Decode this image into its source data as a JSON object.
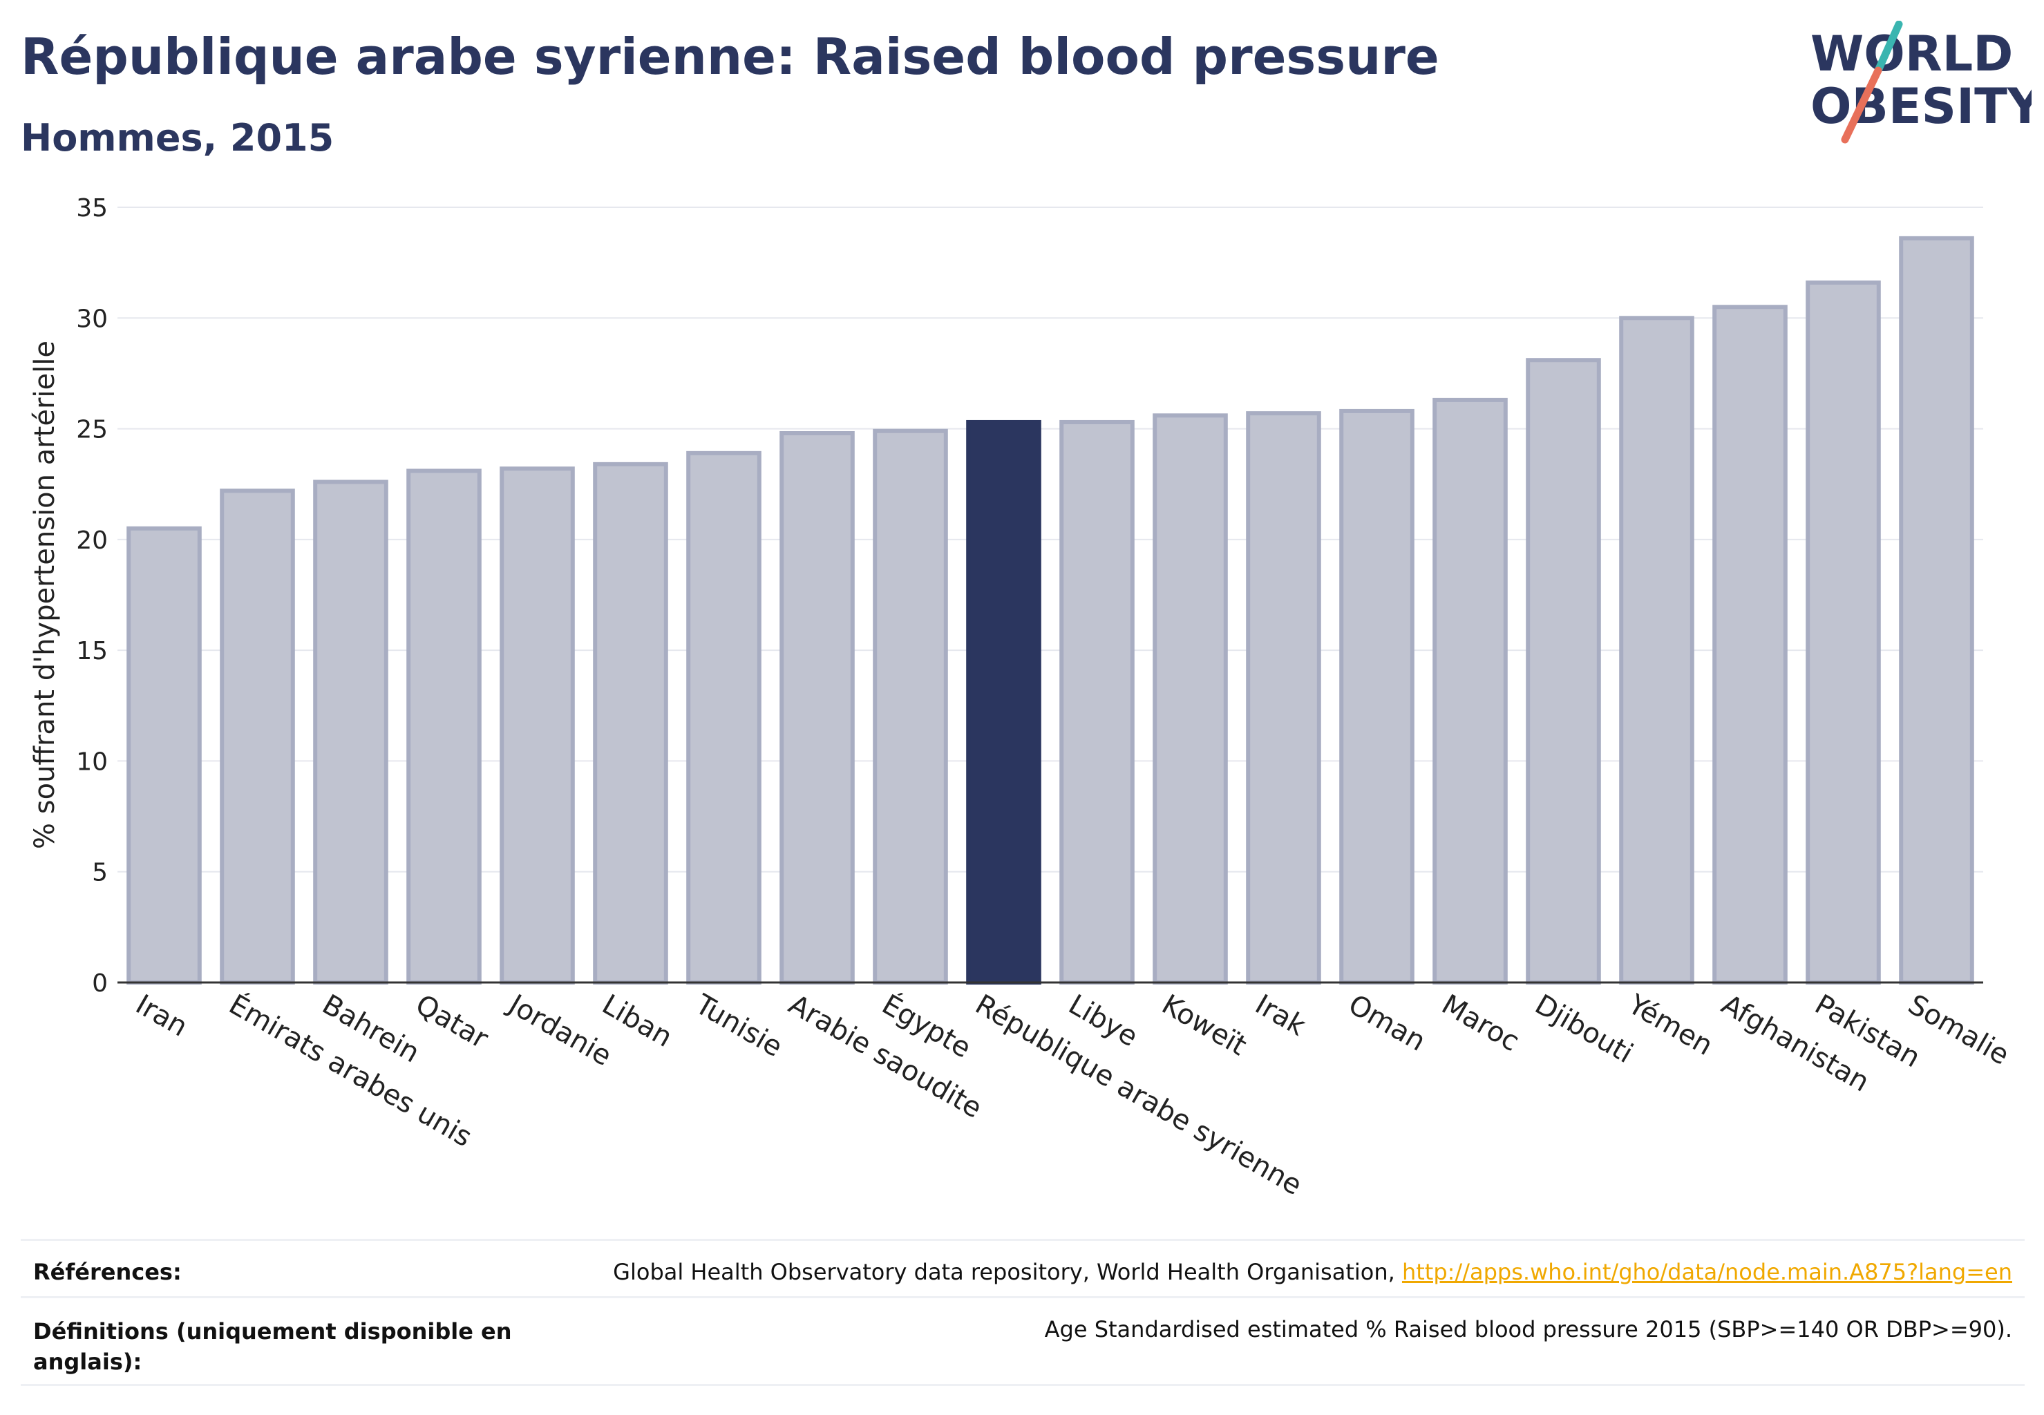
{
  "title": "République arabe syrienne: Raised blood pressure",
  "subtitle": "Hommes, 2015",
  "logo": {
    "line1": "WORLD",
    "line2": "OBESITY"
  },
  "colors": {
    "bar": "#c0c3d0",
    "bar_border": "#a8adc2",
    "highlight": "#2b365f",
    "title": "#2b365f",
    "grid": "#e6e8ee",
    "link": "#f0a800",
    "logo_teal": "#3ab5b0",
    "logo_coral": "#e8705a"
  },
  "chart_data": {
    "type": "bar",
    "ylabel": "% souffrant d'hypertension artérielle",
    "ylim": [
      0,
      35
    ],
    "yticks": [
      0,
      5,
      10,
      15,
      20,
      25,
      30,
      35
    ],
    "grid": true,
    "highlight": "République arabe syrienne",
    "categories": [
      "Iran",
      "Émirats arabes unis",
      "Bahrein",
      "Qatar",
      "Jordanie",
      "Liban",
      "Tunisie",
      "Arabie saoudite",
      "Égypte",
      "République arabe syrienne",
      "Libye",
      "Koweït",
      "Irak",
      "Oman",
      "Maroc",
      "Djibouti",
      "Yémen",
      "Afghanistan",
      "Pakistan",
      "Somalie"
    ],
    "values": [
      20.5,
      22.2,
      22.6,
      23.1,
      23.2,
      23.4,
      23.9,
      24.8,
      24.9,
      25.3,
      25.3,
      25.6,
      25.7,
      25.8,
      26.3,
      28.1,
      30.0,
      30.5,
      31.6,
      33.6
    ]
  },
  "footer": {
    "references_label": "Références:",
    "references_text": "Global Health Observatory data repository, World Health Organisation, ",
    "references_link": "http://apps.who.int/gho/data/node.main.A875?lang=en",
    "definitions_label_line1": "Définitions (uniquement disponible en",
    "definitions_label_line2": "anglais):",
    "definitions_text": "Age Standardised estimated % Raised blood pressure 2015 (SBP>=140 OR DBP>=90)."
  }
}
